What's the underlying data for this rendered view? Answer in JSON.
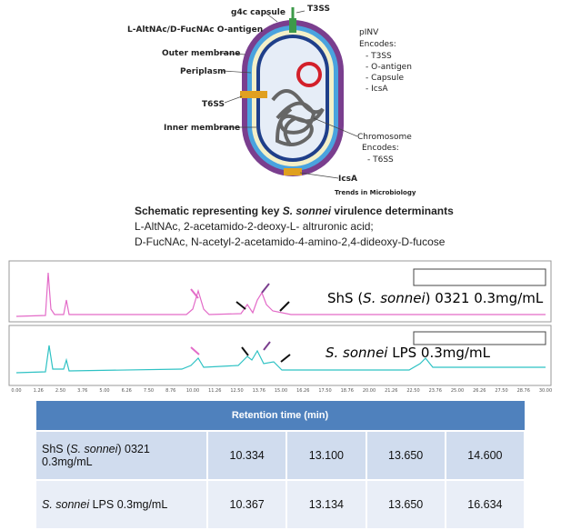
{
  "diagram": {
    "labels": {
      "capsule": "g4c capsule",
      "t3ss": "T3SS",
      "o_antigen": "L-AltNAc/D-FucNAc O-antigen",
      "outer_membrane": "Outer membrane",
      "periplasm": "Periplasm",
      "t6ss": "T6SS",
      "inner_membrane": "Inner membrane",
      "pinv": "pINV",
      "pinv_encodes": "Encodes:",
      "pinv_items": [
        "- T3SS",
        "- O-antigen",
        "- Capsule",
        "- IcsA"
      ],
      "chromosome": "Chromosome",
      "chromosome_encodes": "Encodes:",
      "chromosome_items": [
        "- T6SS"
      ],
      "icsa": "IcsA",
      "source": "Trends in Microbiology"
    },
    "caption": {
      "title_parts": [
        "Schematic representing key ",
        "S. sonnei",
        " virulence determinants"
      ],
      "lines": [
        "L-AltNAc, 2-acetamido-2-deoxy-L- altruronic acid;",
        "D-FucNAc, N-acetyl-2-acetamido-4-amino-2,4-dideoxy-D-fucose"
      ]
    }
  },
  "chromatograms": {
    "traces": [
      {
        "label_parts": [
          "ShS (",
          "S. sonnei",
          ") 0321 0.3mg/mL"
        ]
      },
      {
        "label_parts": [
          "S. sonnei",
          " LPS 0.3mg/mL"
        ]
      }
    ],
    "x_tick_labels": [
      "0.00",
      "1.26",
      "2.50",
      "3.76",
      "5.00",
      "6.26",
      "7.50",
      "8.76",
      "10.00",
      "11.26",
      "12.50",
      "13.76",
      "15.00",
      "16.26",
      "17.50",
      "18.76",
      "20.00",
      "21.26",
      "22.50",
      "23.76",
      "25.00",
      "26.26",
      "27.50",
      "28.76",
      "30.00"
    ]
  },
  "table": {
    "header": "Retention time (min)",
    "rows": [
      {
        "label_parts": [
          "ShS (",
          "S. sonnei",
          ") 0321 0.3mg/mL"
        ],
        "cells": [
          "10.334",
          "13.100",
          "13.650",
          "14.600"
        ]
      },
      {
        "label_parts": [
          "S. sonnei",
          " LPS 0.3mg/mL"
        ],
        "cells": [
          "10.367",
          "13.134",
          "13.650",
          "16.634"
        ]
      }
    ]
  }
}
